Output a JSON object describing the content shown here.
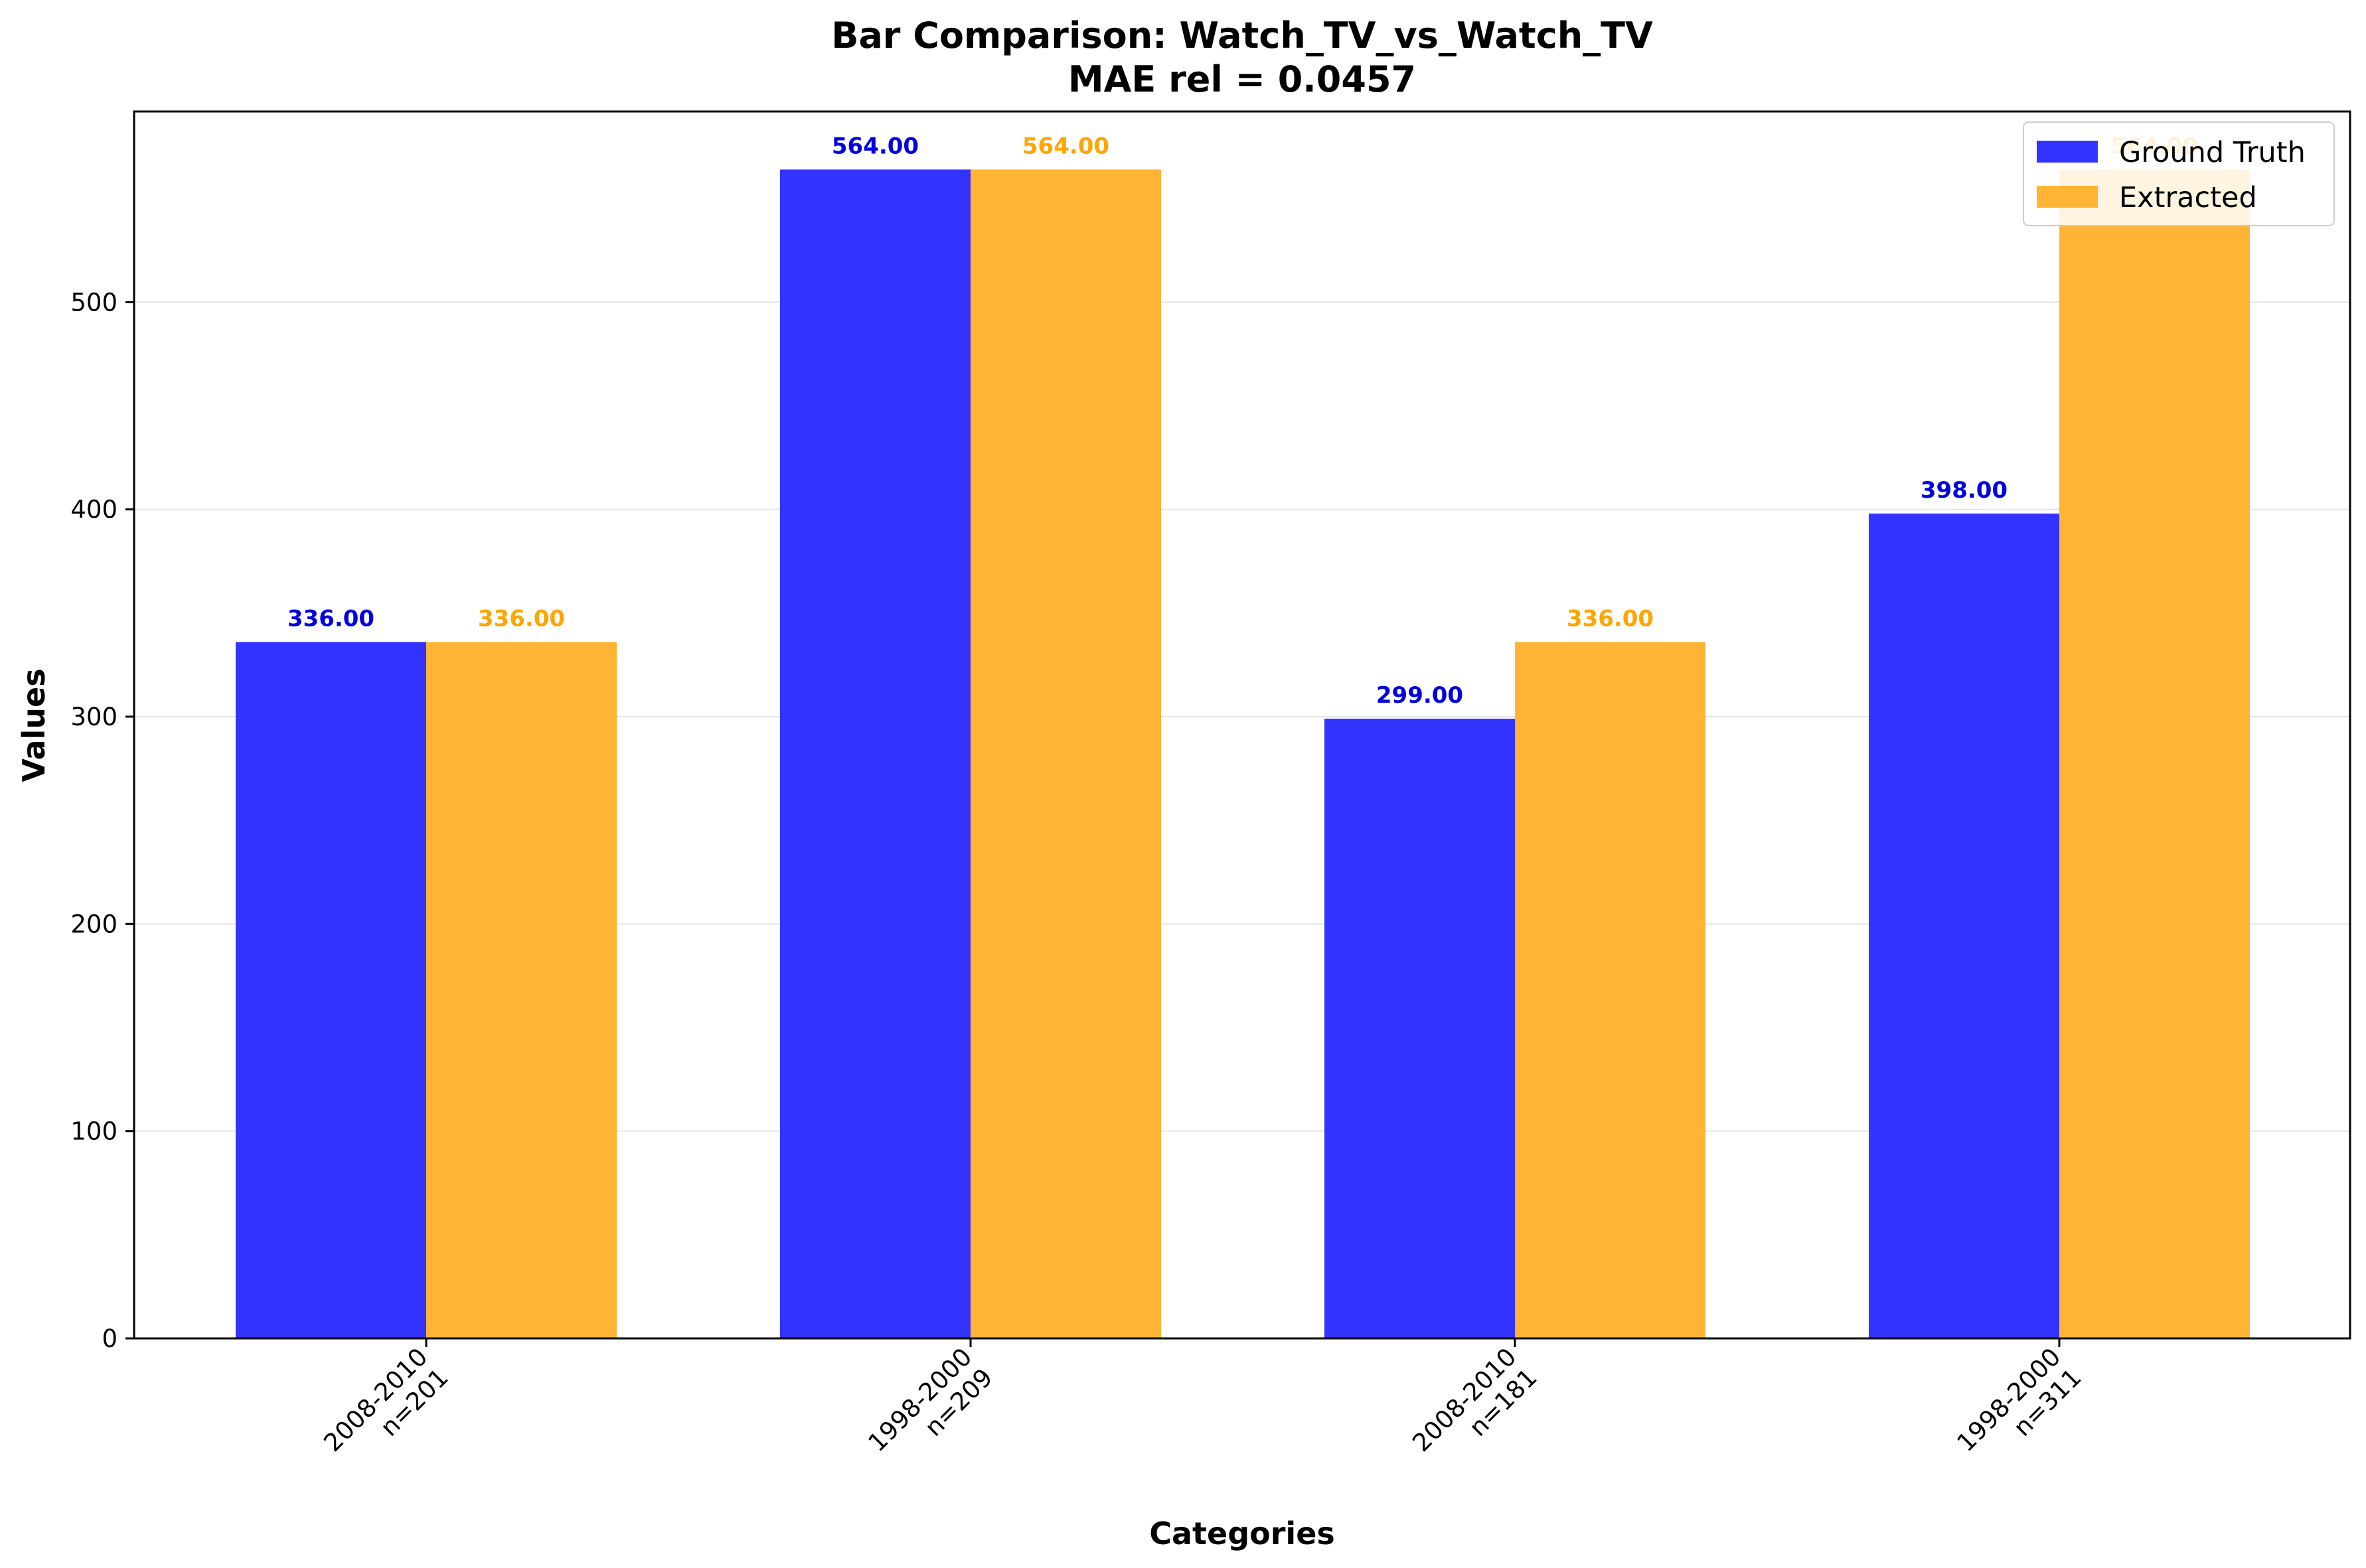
{
  "chart_data": {
    "type": "bar",
    "title": "Bar Comparison: Watch_TV_vs_Watch_TV",
    "subtitle": "MAE rel = 0.0457",
    "xlabel": "Categories",
    "ylabel": "Values",
    "categories": [
      "2008-2010\nn=201",
      "1998-2000\nn=209",
      "2008-2010\nn=181",
      "1998-2000\nn=311"
    ],
    "ylim": [
      0,
      592
    ],
    "yticks": [
      0,
      100,
      200,
      300,
      400,
      500
    ],
    "grid": "y",
    "legend_position": "top-right",
    "series": [
      {
        "name": "Ground Truth",
        "color": "#3333ff",
        "label_color": "#0000e0",
        "values": [
          336,
          564,
          299,
          398
        ],
        "value_labels": [
          "336.00",
          "564.00",
          "299.00",
          "398.00"
        ]
      },
      {
        "name": "Extracted",
        "color": "#ffb533",
        "label_color": "#ffa500",
        "values": [
          336,
          564,
          336,
          564
        ],
        "value_labels": [
          "336.00",
          "564.00",
          "336.00",
          "564.00"
        ]
      }
    ]
  }
}
